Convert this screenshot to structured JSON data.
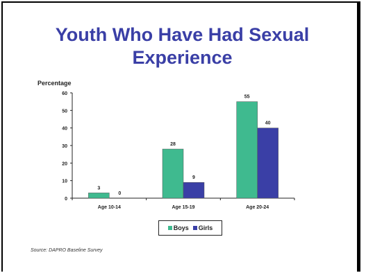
{
  "title_lines": [
    "Youth Who Have Had Sexual",
    "Experience"
  ],
  "source": "Source: DAPRO Baseline Survey",
  "colors": {
    "title": "#3a3fa6",
    "boys": "#3fba8f",
    "girls": "#3a3fa6",
    "axis": "#222222"
  },
  "chart_data": {
    "type": "bar",
    "title": "Youth Who Have Had Sexual Experience",
    "ylabel": "Percentage",
    "xlabel": "",
    "categories": [
      "Age 10-14",
      "Age 15-19",
      "Age 20-24"
    ],
    "ylim": [
      0,
      60
    ],
    "yticks": [
      0,
      10,
      20,
      30,
      40,
      50,
      60
    ],
    "grid": false,
    "legend_position": "bottom-center",
    "series": [
      {
        "name": "Boys",
        "values": [
          3,
          28,
          55
        ],
        "labels": [
          "3",
          "28",
          "55"
        ]
      },
      {
        "name": "Girls",
        "values": [
          0,
          9,
          40
        ],
        "labels": [
          "0",
          "9",
          "40"
        ]
      }
    ]
  }
}
